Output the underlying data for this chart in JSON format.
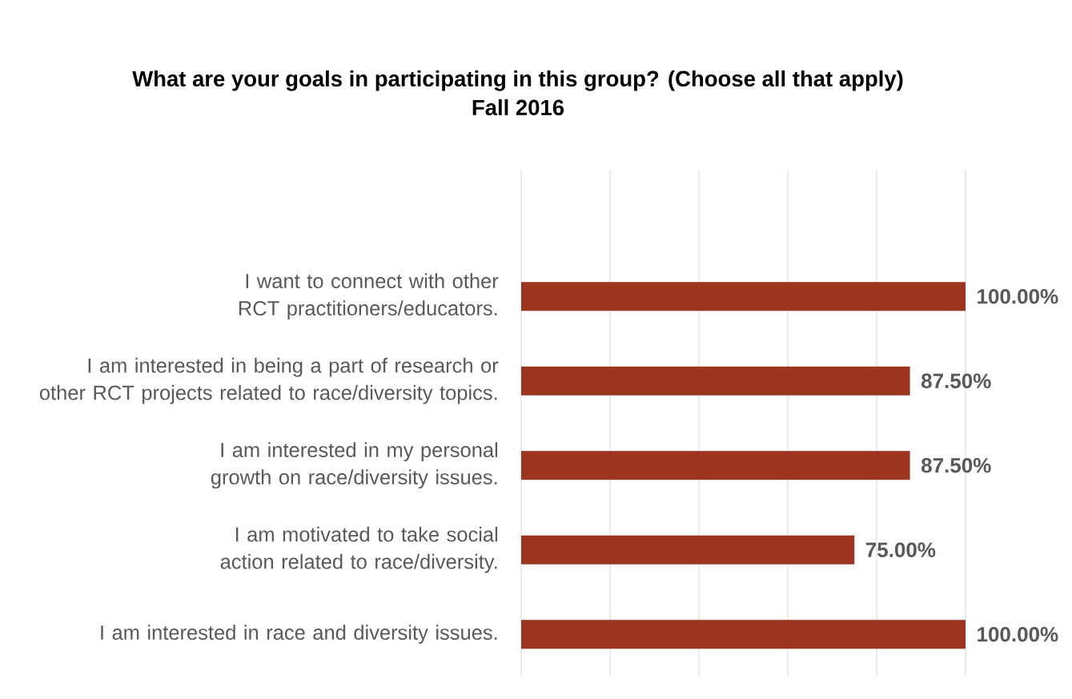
{
  "chart_data": {
    "type": "bar",
    "orientation": "horizontal",
    "title": "What are your goals in participating in this group? (Choose all that apply)",
    "subtitle": "Fall 2016",
    "categories": [
      "I want to connect with other RCT practitioners/educators.",
      "I am interested in being a part of research or other RCT projects related to race/diversity topics.",
      "I am interested in my personal growth on race/diversity issues.",
      "I am motivated to take social action related to race/diversity.",
      "I am interested in race and diversity issues."
    ],
    "values": [
      100,
      87.5,
      87.5,
      75,
      100
    ],
    "value_labels": [
      "100.00%",
      "87.50%",
      "87.50%",
      "75.00%",
      "100.00%"
    ],
    "color": "#9b3520",
    "xlim": [
      0,
      100
    ],
    "xticks": [
      {
        "value": 0,
        "label": null
      },
      {
        "value": 20,
        "label": null
      },
      {
        "value": 40,
        "label": null
      },
      {
        "value": 60,
        "label": null
      },
      {
        "value": 80,
        "label": null
      },
      {
        "value": 100,
        "label": null
      }
    ],
    "tick_labels": "y",
    "grid": "x"
  }
}
